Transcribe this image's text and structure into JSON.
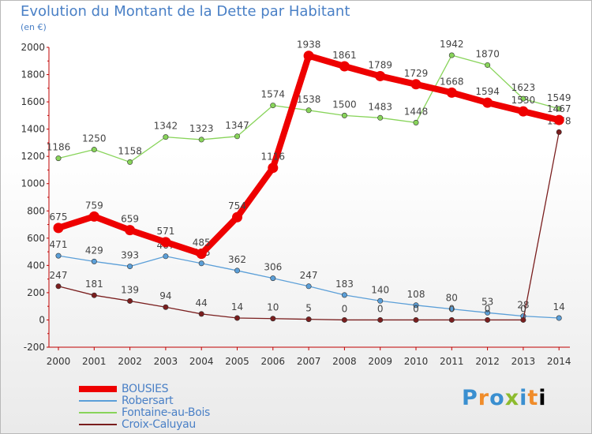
{
  "header": {
    "title": "Evolution du Montant de la Dette par Habitant",
    "subtitle": "(en €)"
  },
  "logo": {
    "letters": [
      "P",
      "r",
      "o",
      "x",
      "i",
      "t",
      "i"
    ]
  },
  "chart_data": {
    "type": "line",
    "title": "Evolution du Montant de la Dette par Habitant",
    "subtitle": "(en €)",
    "xlabel": "",
    "ylabel": "",
    "x": [
      "2000",
      "2001",
      "2002",
      "2003",
      "2004",
      "2005",
      "2006",
      "2007",
      "2008",
      "2009",
      "2010",
      "2011",
      "2012",
      "2013",
      "2014"
    ],
    "ylim": [
      -200,
      2000
    ],
    "yticks": [
      -200,
      0,
      200,
      400,
      600,
      800,
      1000,
      1200,
      1400,
      1600,
      1800,
      2000
    ],
    "grid": false,
    "legend_position": "bottom-left",
    "series": [
      {
        "name": "BOUSIES",
        "color": "#ee0000",
        "width": "thick",
        "values": [
          675,
          759,
          659,
          571,
          485,
          754,
          1116,
          1938,
          1861,
          1789,
          1729,
          1668,
          1594,
          1530,
          1467
        ]
      },
      {
        "name": "Robersart",
        "color": "#5b9fd8",
        "width": "thin",
        "values": [
          471,
          429,
          393,
          467,
          415,
          362,
          306,
          247,
          183,
          140,
          108,
          80,
          53,
          28,
          14
        ]
      },
      {
        "name": "Fontaine-au-Bois",
        "color": "#88d45a",
        "width": "thin",
        "values": [
          1186,
          1250,
          1158,
          1342,
          1323,
          1347,
          1574,
          1538,
          1500,
          1483,
          1448,
          1942,
          1870,
          1623,
          1549
        ]
      },
      {
        "name": "Croix-Caluyau",
        "color": "#7a1e1e",
        "width": "thin",
        "values": [
          247,
          181,
          139,
          94,
          44,
          14,
          10,
          5,
          0,
          0,
          0,
          0,
          0,
          0,
          1378
        ]
      }
    ]
  }
}
